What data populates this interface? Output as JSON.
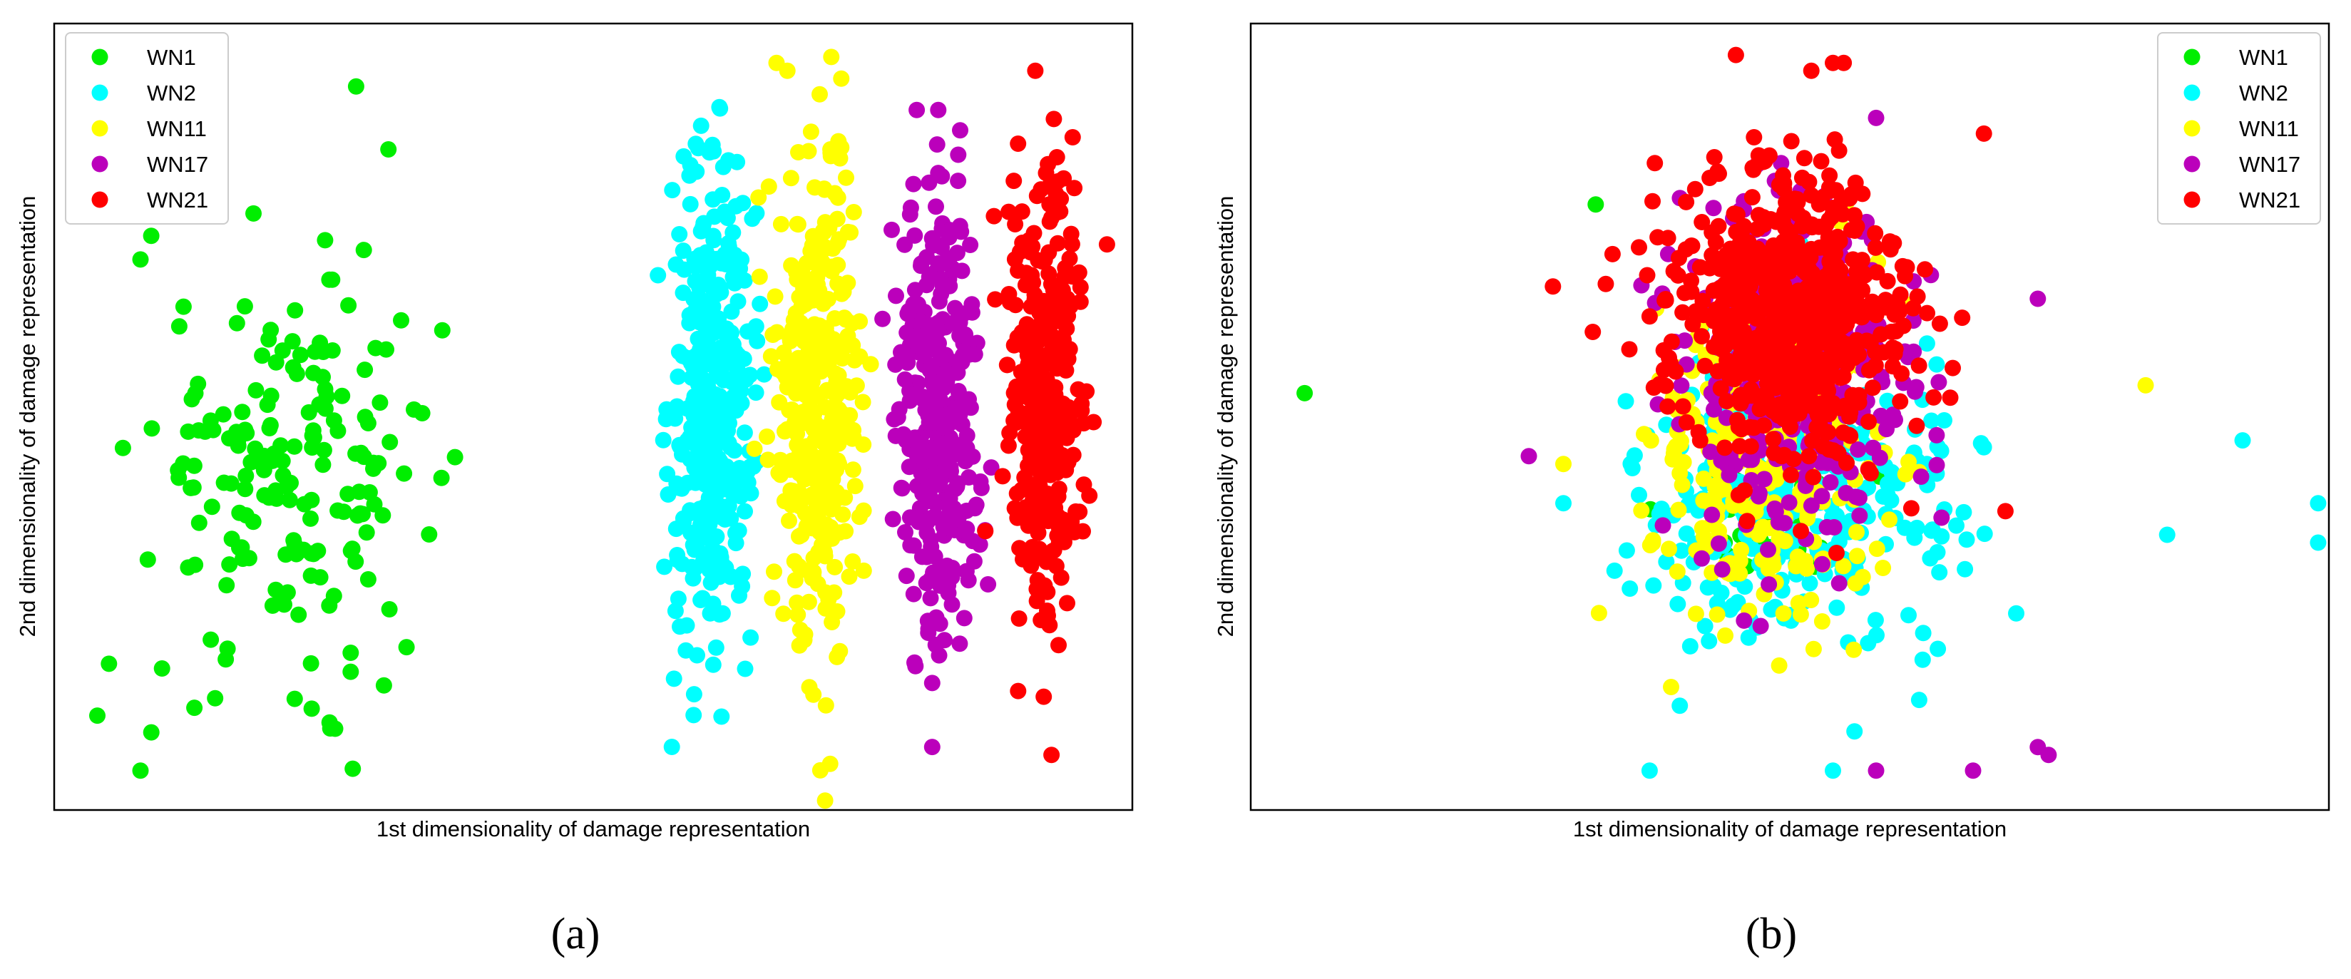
{
  "chart_data": [
    {
      "type": "scatter",
      "panel_label": "(a)",
      "xlabel": "1st dimensionality of damage representation",
      "ylabel": "2nd dimensionality of damage representation",
      "xlim": [
        0,
        100
      ],
      "ylim": [
        0,
        100
      ],
      "ticks_visible": false,
      "grid": false,
      "legend": {
        "position": "top-left",
        "entries": [
          "WN1",
          "WN2",
          "WN11",
          "WN17",
          "WN21"
        ]
      },
      "series": [
        {
          "name": "WN1",
          "color": "#00ee00",
          "cluster": {
            "cx": 22,
            "cy": 43,
            "sx": 6.5,
            "sy": 12,
            "n": 180
          },
          "outliers": [
            [
              28,
              92
            ],
            [
              31,
              84
            ],
            [
              36,
              61
            ],
            [
              4,
              12
            ],
            [
              8,
              5
            ],
            [
              10,
              18
            ],
            [
              13,
              13
            ],
            [
              12,
              64
            ],
            [
              9,
              73
            ],
            [
              8,
              70
            ]
          ]
        },
        {
          "name": "WN2",
          "color": "#00ffff",
          "cluster": {
            "cx": 61,
            "cy": 51,
            "sx": 1.9,
            "sy": 15,
            "n": 360
          },
          "outliers": [
            [
              59,
              82
            ],
            [
              60,
              87
            ],
            [
              56,
              68
            ],
            [
              62,
              25
            ]
          ]
        },
        {
          "name": "WN11",
          "color": "#ffff00",
          "cluster": {
            "cx": 71,
            "cy": 53,
            "sx": 1.9,
            "sy": 16,
            "n": 360
          },
          "outliers": [
            [
              67,
              95
            ],
            [
              68,
              94
            ],
            [
              71,
              91
            ],
            [
              73,
              93
            ],
            [
              72,
              84
            ]
          ]
        },
        {
          "name": "WN17",
          "color": "#bb00bb",
          "cluster": {
            "cx": 82,
            "cy": 50,
            "sx": 1.9,
            "sy": 14,
            "n": 340
          },
          "outliers": [
            [
              80,
              89
            ],
            [
              82,
              89
            ],
            [
              82,
              81
            ],
            [
              79,
              47
            ]
          ]
        },
        {
          "name": "WN21",
          "color": "#ff0000",
          "cluster": {
            "cx": 92,
            "cy": 52,
            "sx": 1.8,
            "sy": 14,
            "n": 340
          },
          "outliers": [
            [
              91,
              94
            ],
            [
              93,
              83
            ],
            [
              89,
              80
            ],
            [
              92,
              81
            ]
          ]
        }
      ]
    },
    {
      "type": "scatter",
      "panel_label": "(b)",
      "xlabel": "1st dimensionality of damage representation",
      "ylabel": "2nd dimensionality of damage representation",
      "xlim": [
        0,
        100
      ],
      "ylim": [
        0,
        100
      ],
      "ticks_visible": false,
      "grid": false,
      "legend": {
        "position": "top-right",
        "entries": [
          "WN1",
          "WN2",
          "WN11",
          "WN17",
          "WN21"
        ]
      },
      "series": [
        {
          "name": "WN1",
          "color": "#00ee00",
          "cluster": {
            "cx": 49,
            "cy": 40,
            "sx": 5,
            "sy": 7,
            "n": 40
          },
          "outliers": [
            [
              32,
              77
            ],
            [
              5,
              53
            ]
          ]
        },
        {
          "name": "WN2",
          "color": "#00ffff",
          "cluster": {
            "cx": 51,
            "cy": 40,
            "sx": 7,
            "sy": 10,
            "n": 320
          },
          "outliers": [
            [
              37,
              5
            ],
            [
              54,
              5
            ],
            [
              56,
              10
            ],
            [
              62,
              14
            ],
            [
              85,
              35
            ],
            [
              92,
              47
            ],
            [
              99,
              39
            ],
            [
              99,
              34
            ],
            [
              71,
              25
            ],
            [
              29,
              39
            ]
          ]
        },
        {
          "name": "WN11",
          "color": "#ffff00",
          "cluster": {
            "cx": 48,
            "cy": 45,
            "sx": 5.5,
            "sy": 10,
            "n": 280
          },
          "outliers": [
            [
              83,
              54
            ],
            [
              29,
              44
            ]
          ]
        },
        {
          "name": "WN17",
          "color": "#bb00bb",
          "cluster": {
            "cx": 50,
            "cy": 55,
            "sx": 5.5,
            "sy": 11,
            "n": 300
          },
          "outliers": [
            [
              58,
              88
            ],
            [
              74,
              7
            ],
            [
              73,
              8
            ],
            [
              58,
              5
            ],
            [
              67,
              5
            ],
            [
              73,
              65
            ]
          ]
        },
        {
          "name": "WN21",
          "color": "#ff0000",
          "cluster": {
            "cx": 50,
            "cy": 63,
            "sx": 5.5,
            "sy": 9,
            "n": 700
          },
          "outliers": [
            [
              45,
              96
            ],
            [
              52,
              94
            ],
            [
              54,
              95
            ],
            [
              55,
              95
            ],
            [
              68,
              86
            ],
            [
              43,
              83
            ],
            [
              70,
              38
            ]
          ]
        }
      ]
    }
  ]
}
